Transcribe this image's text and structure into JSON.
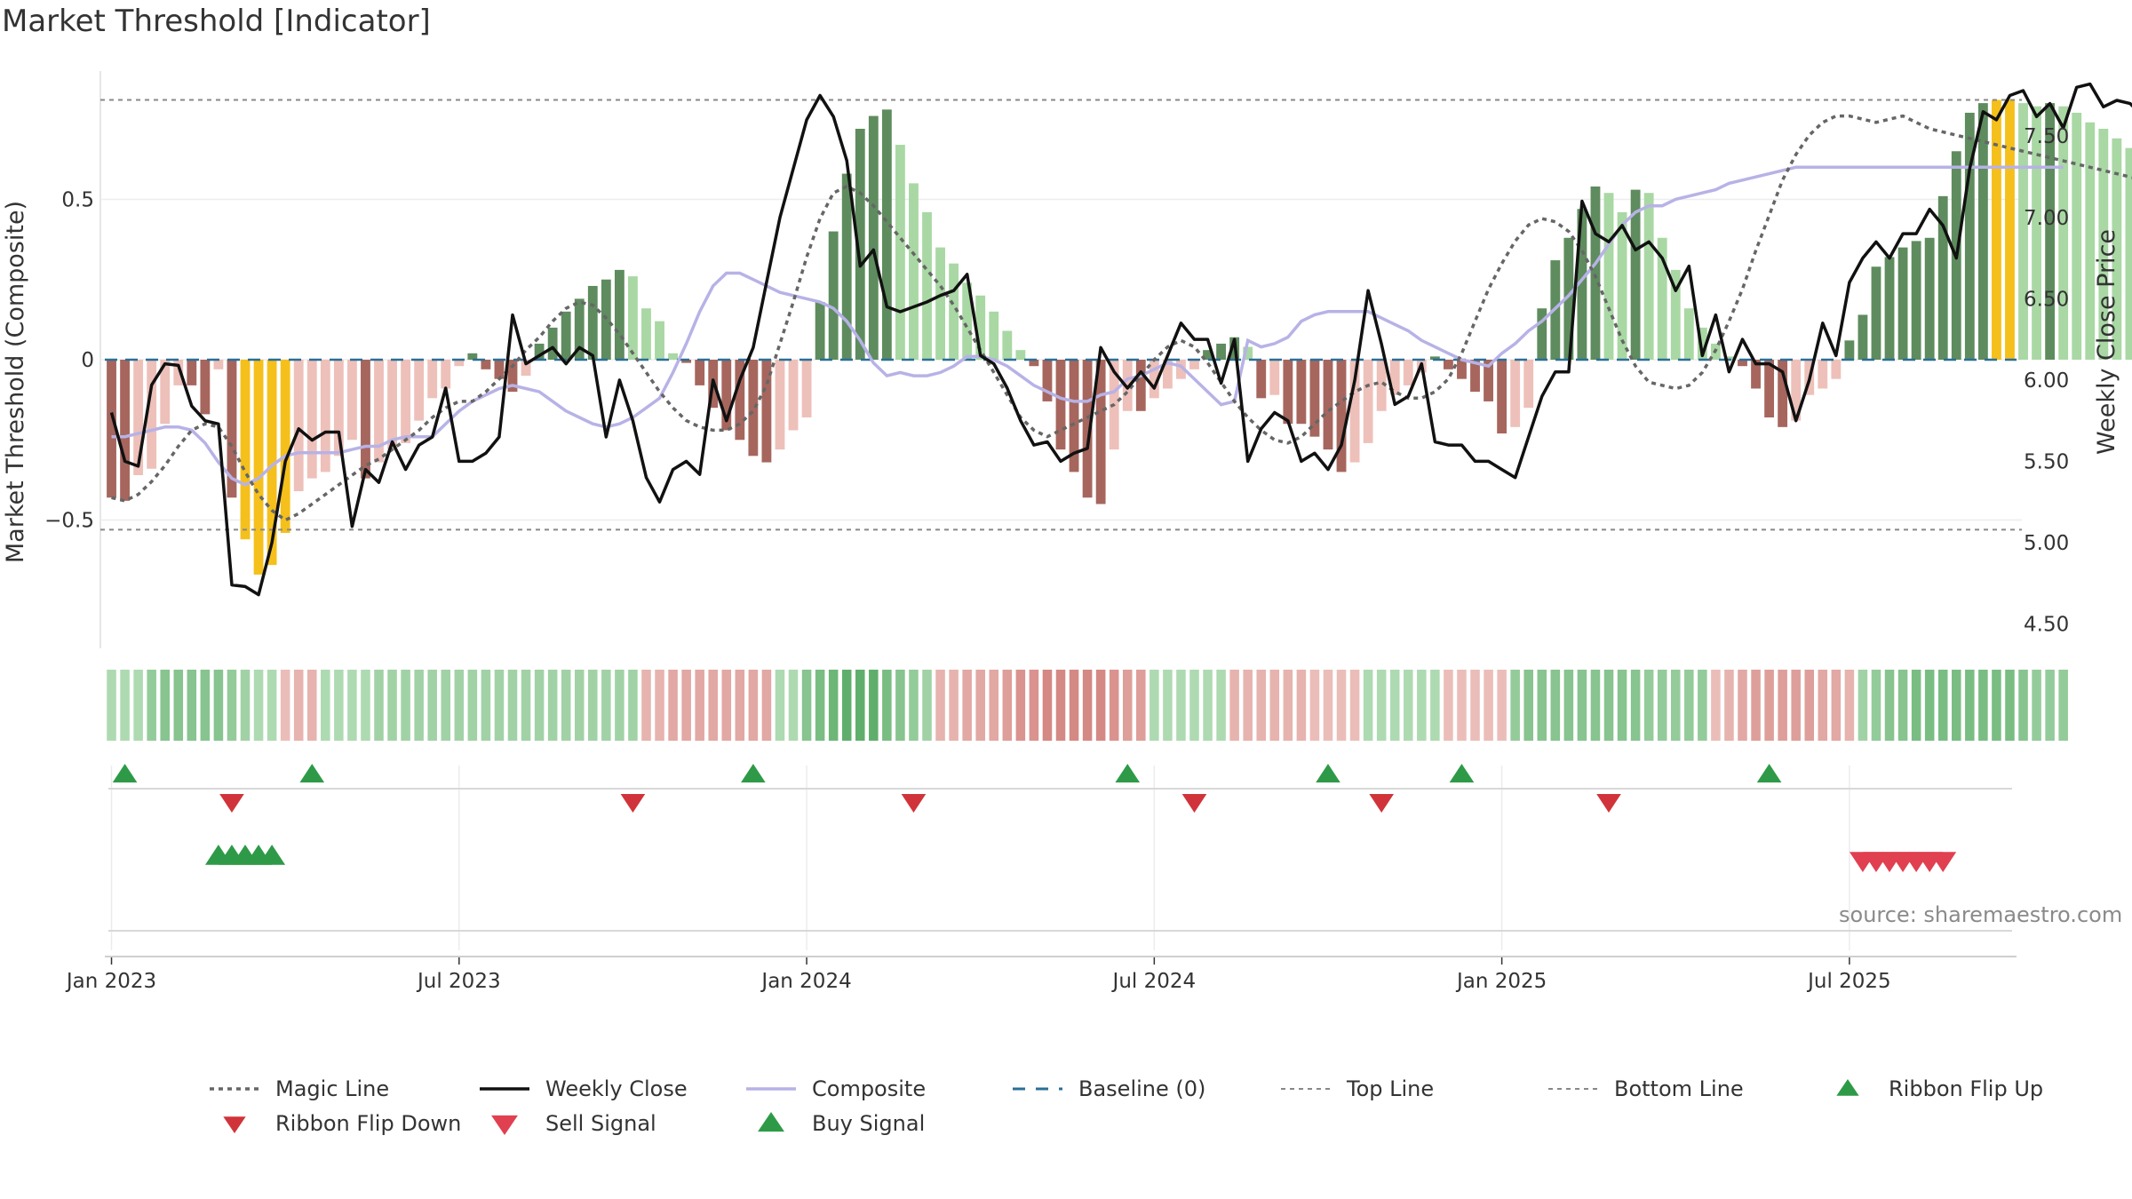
{
  "chart_data": {
    "type": "bar",
    "title": "Market Threshold [Indicator]",
    "source_note": "source: sharemaestro.com",
    "ylabel_left": "Market Threshold (Composite)",
    "ylabel_right": "Weekly Close Price",
    "left_ticks": [
      {
        "v": 0.5,
        "label": "0.5"
      },
      {
        "v": 0,
        "label": "0"
      },
      {
        "v": -0.5,
        "label": "−0.5"
      }
    ],
    "right_ticks": [
      {
        "v": 7.5,
        "label": "7.50"
      },
      {
        "v": 7.0,
        "label": "7.00"
      },
      {
        "v": 6.5,
        "label": "6.50"
      },
      {
        "v": 6.0,
        "label": "6.00"
      },
      {
        "v": 5.5,
        "label": "5.50"
      },
      {
        "v": 5.0,
        "label": "5.00"
      },
      {
        "v": 4.5,
        "label": "4.50"
      }
    ],
    "left_ylim": [
      -0.9,
      0.9
    ],
    "right_ylim": [
      4.35,
      7.9
    ],
    "x_ticks": [
      {
        "week": 1,
        "label": "Jan 2023"
      },
      {
        "week": 27,
        "label": "Jul 2023"
      },
      {
        "week": 53,
        "label": "Jan 2024"
      },
      {
        "week": 79,
        "label": "Jul 2024"
      },
      {
        "week": 105,
        "label": "Jan 2025"
      },
      {
        "week": 131,
        "label": "Jul 2025"
      }
    ],
    "weeks": 143,
    "top_line": 0.81,
    "bottom_line": -0.53,
    "baseline": 0,
    "composite_bars": [
      -0.43,
      -0.44,
      -0.36,
      -0.34,
      -0.2,
      -0.08,
      -0.08,
      -0.17,
      -0.03,
      -0.43,
      -0.56,
      -0.67,
      -0.64,
      -0.54,
      -0.41,
      -0.37,
      -0.35,
      -0.3,
      -0.25,
      -0.37,
      -0.32,
      -0.28,
      -0.26,
      -0.19,
      -0.12,
      -0.09,
      -0.02,
      0.02,
      -0.03,
      -0.06,
      -0.1,
      -0.05,
      0.05,
      0.1,
      0.15,
      0.19,
      0.23,
      0.25,
      0.28,
      0.26,
      0.16,
      0.12,
      0.02,
      -0.01,
      -0.08,
      -0.15,
      -0.22,
      -0.25,
      -0.3,
      -0.32,
      -0.28,
      -0.22,
      -0.18,
      0.18,
      0.4,
      0.58,
      0.72,
      0.76,
      0.78,
      0.67,
      0.55,
      0.46,
      0.35,
      0.3,
      0.24,
      0.2,
      0.15,
      0.09,
      0.03,
      -0.02,
      -0.13,
      -0.28,
      -0.35,
      -0.43,
      -0.45,
      -0.28,
      -0.16,
      -0.16,
      -0.12,
      -0.09,
      -0.06,
      -0.03,
      0.03,
      0.05,
      0.07,
      0.04,
      -0.12,
      -0.11,
      -0.2,
      -0.2,
      -0.24,
      -0.28,
      -0.35,
      -0.32,
      -0.26,
      -0.16,
      -0.11,
      -0.08,
      -0.04,
      0.01,
      -0.03,
      -0.06,
      -0.1,
      -0.13,
      -0.23,
      -0.21,
      -0.15,
      0.16,
      0.31,
      0.38,
      0.47,
      0.54,
      0.52,
      0.46,
      0.53,
      0.52,
      0.38,
      0.28,
      0.16,
      0.1,
      0.05,
      0.01,
      -0.02,
      -0.09,
      -0.18,
      -0.21,
      -0.19,
      -0.11,
      -0.09,
      -0.06,
      0.06,
      0.14,
      0.29,
      0.32,
      0.35,
      0.37,
      0.38,
      0.51,
      0.65,
      0.77,
      0.8,
      0.81,
      0.81,
      0.8,
      0.79,
      0.8,
      0.79,
      0.77,
      0.74,
      0.72,
      0.69,
      0.66
    ],
    "weekly_close": [
      5.8,
      5.5,
      5.47,
      5.97,
      6.1,
      6.09,
      5.84,
      5.75,
      5.73,
      4.74,
      4.73,
      4.68,
      5.0,
      5.5,
      5.7,
      5.63,
      5.68,
      5.68,
      5.1,
      5.45,
      5.37,
      5.62,
      5.45,
      5.6,
      5.65,
      5.95,
      5.5,
      5.5,
      5.55,
      5.65,
      6.4,
      6.1,
      6.15,
      6.2,
      6.1,
      6.2,
      6.15,
      5.65,
      6.0,
      5.75,
      5.4,
      5.25,
      5.45,
      5.5,
      5.42,
      6.0,
      5.75,
      6.0,
      6.2,
      6.6,
      7.0,
      7.3,
      7.6,
      7.75,
      7.62,
      7.35,
      6.7,
      6.8,
      6.45,
      6.42,
      6.45,
      6.48,
      6.52,
      6.55,
      6.65,
      6.15,
      6.1,
      5.95,
      5.75,
      5.6,
      5.62,
      5.5,
      5.55,
      5.58,
      6.2,
      6.05,
      5.95,
      6.05,
      5.95,
      6.15,
      6.35,
      6.25,
      6.25,
      5.98,
      6.25,
      5.5,
      5.7,
      5.8,
      5.75,
      5.5,
      5.55,
      5.45,
      5.6,
      6.0,
      6.55,
      6.22,
      5.85,
      5.9,
      6.1,
      5.62,
      5.6,
      5.6,
      5.5,
      5.5,
      5.45,
      5.4,
      5.65,
      5.9,
      6.05,
      6.05,
      7.1,
      6.9,
      6.85,
      6.95,
      6.8,
      6.85,
      6.75,
      6.55,
      6.7,
      6.15,
      6.4,
      6.05,
      6.25,
      6.1,
      6.1,
      6.05,
      5.75,
      6.0,
      6.35,
      6.15,
      6.6,
      6.75,
      6.85,
      6.75,
      6.9,
      6.9,
      7.05,
      6.95,
      6.75,
      7.3,
      7.65,
      7.6,
      7.75,
      7.78,
      7.62,
      7.7,
      7.55,
      7.8,
      7.82,
      7.68,
      7.72,
      7.7,
      7.62
    ],
    "magic_line": [
      -0.43,
      -0.44,
      -0.42,
      -0.38,
      -0.33,
      -0.27,
      -0.22,
      -0.2,
      -0.21,
      -0.27,
      -0.35,
      -0.42,
      -0.47,
      -0.5,
      -0.48,
      -0.45,
      -0.42,
      -0.39,
      -0.36,
      -0.33,
      -0.31,
      -0.28,
      -0.25,
      -0.22,
      -0.18,
      -0.15,
      -0.13,
      -0.13,
      -0.1,
      -0.06,
      -0.02,
      0.03,
      0.07,
      0.12,
      0.16,
      0.18,
      0.17,
      0.13,
      0.08,
      0.02,
      -0.04,
      -0.1,
      -0.15,
      -0.19,
      -0.21,
      -0.22,
      -0.22,
      -0.2,
      -0.16,
      -0.08,
      0.05,
      0.18,
      0.32,
      0.44,
      0.52,
      0.54,
      0.52,
      0.48,
      0.43,
      0.38,
      0.33,
      0.28,
      0.23,
      0.17,
      0.1,
      0.03,
      -0.04,
      -0.11,
      -0.18,
      -0.22,
      -0.24,
      -0.22,
      -0.2,
      -0.18,
      -0.16,
      -0.14,
      -0.1,
      -0.05,
      0.0,
      0.04,
      0.06,
      0.04,
      -0.01,
      -0.07,
      -0.13,
      -0.18,
      -0.22,
      -0.25,
      -0.26,
      -0.24,
      -0.2,
      -0.16,
      -0.13,
      -0.1,
      -0.08,
      -0.07,
      -0.1,
      -0.12,
      -0.12,
      -0.1,
      -0.06,
      0.02,
      0.12,
      0.22,
      0.3,
      0.37,
      0.42,
      0.44,
      0.43,
      0.4,
      0.34,
      0.26,
      0.16,
      0.06,
      -0.02,
      -0.07,
      -0.08,
      -0.09,
      -0.08,
      -0.04,
      0.03,
      0.12,
      0.22,
      0.34,
      0.45,
      0.56,
      0.64,
      0.7,
      0.74,
      0.76,
      0.76,
      0.75,
      0.74,
      0.75,
      0.76,
      0.74,
      0.72,
      0.71,
      0.7,
      0.69,
      0.68,
      0.67,
      0.66,
      0.65,
      0.64,
      0.63,
      0.62,
      0.61,
      0.6,
      0.59,
      0.58,
      0.57,
      0.56,
      0.55,
      0.54,
      0.53,
      0.52
    ],
    "composite_line": [
      -0.24,
      -0.24,
      -0.23,
      -0.22,
      -0.21,
      -0.21,
      -0.22,
      -0.26,
      -0.32,
      -0.37,
      -0.39,
      -0.37,
      -0.33,
      -0.3,
      -0.29,
      -0.29,
      -0.29,
      -0.29,
      -0.28,
      -0.27,
      -0.27,
      -0.25,
      -0.24,
      -0.24,
      -0.24,
      -0.2,
      -0.16,
      -0.13,
      -0.11,
      -0.09,
      -0.08,
      -0.09,
      -0.1,
      -0.13,
      -0.16,
      -0.18,
      -0.2,
      -0.21,
      -0.2,
      -0.18,
      -0.15,
      -0.12,
      -0.04,
      0.05,
      0.15,
      0.23,
      0.27,
      0.27,
      0.25,
      0.23,
      0.21,
      0.2,
      0.19,
      0.18,
      0.16,
      0.12,
      0.06,
      -0.01,
      -0.05,
      -0.04,
      -0.05,
      -0.05,
      -0.04,
      -0.02,
      0.01,
      0.01,
      0.0,
      -0.02,
      -0.05,
      -0.08,
      -0.1,
      -0.12,
      -0.13,
      -0.13,
      -0.11,
      -0.1,
      -0.06,
      -0.05,
      -0.03,
      -0.01,
      -0.02,
      -0.06,
      -0.1,
      -0.14,
      -0.13,
      0.06,
      0.04,
      0.05,
      0.07,
      0.12,
      0.14,
      0.15,
      0.15,
      0.15,
      0.15,
      0.13,
      0.11,
      0.09,
      0.06,
      0.04,
      0.02,
      0.0,
      -0.01,
      -0.02,
      0.02,
      0.05,
      0.09,
      0.12,
      0.16,
      0.2,
      0.25,
      0.3,
      0.36,
      0.42,
      0.46,
      0.48,
      0.48,
      0.5,
      0.51,
      0.52,
      0.53,
      0.55,
      0.56,
      0.57,
      0.58,
      0.59,
      0.6,
      0.6,
      0.6,
      0.6,
      0.6,
      0.6,
      0.6,
      0.6,
      0.6,
      0.6,
      0.6,
      0.6,
      0.6,
      0.6,
      0.6,
      0.6,
      0.6,
      0.6,
      0.6,
      0.6,
      0.6
    ],
    "ribbon_flip_up_weeks": [
      2,
      16,
      49,
      77,
      92,
      102,
      125
    ],
    "ribbon_flip_down_weeks": [
      10,
      40,
      61,
      82,
      96,
      113
    ],
    "buy_signal_weeks": [
      9,
      10,
      11,
      12,
      13
    ],
    "sell_signal_weeks": [
      132,
      133,
      134,
      135,
      136,
      137,
      138
    ],
    "ribbon_values": [
      0.2,
      0.2,
      0.2,
      0.4,
      0.5,
      0.5,
      0.5,
      0.5,
      0.5,
      0.4,
      0.3,
      0.2,
      0.2,
      -0.2,
      -0.3,
      -0.3,
      0.2,
      0.2,
      0.2,
      0.2,
      0.3,
      0.3,
      0.3,
      0.3,
      0.3,
      0.3,
      0.3,
      0.3,
      0.3,
      0.3,
      0.3,
      0.3,
      0.3,
      0.3,
      0.3,
      0.3,
      0.3,
      0.3,
      0.3,
      0.3,
      -0.3,
      -0.3,
      -0.4,
      -0.4,
      -0.4,
      -0.4,
      -0.4,
      -0.4,
      -0.4,
      -0.4,
      0.2,
      0.2,
      0.5,
      0.6,
      0.7,
      0.8,
      0.8,
      0.8,
      0.6,
      0.5,
      0.4,
      0.3,
      -0.3,
      -0.3,
      -0.4,
      -0.4,
      -0.4,
      -0.5,
      -0.6,
      -0.6,
      -0.7,
      -0.7,
      -0.7,
      -0.7,
      -0.7,
      -0.6,
      -0.5,
      -0.5,
      0.2,
      0.2,
      0.2,
      0.2,
      0.2,
      0.2,
      -0.3,
      -0.3,
      -0.3,
      -0.3,
      -0.3,
      -0.3,
      -0.2,
      -0.2,
      -0.2,
      -0.2,
      0.2,
      0.2,
      0.2,
      0.2,
      0.2,
      0.2,
      -0.2,
      -0.2,
      -0.2,
      -0.2,
      -0.2,
      0.4,
      0.5,
      0.5,
      0.5,
      0.5,
      0.5,
      0.5,
      0.5,
      0.5,
      0.5,
      0.4,
      0.4,
      0.4,
      0.4,
      0.4,
      -0.2,
      -0.3,
      -0.4,
      -0.5,
      -0.5,
      -0.5,
      -0.5,
      -0.5,
      -0.4,
      -0.4,
      -0.3,
      0.3,
      0.4,
      0.5,
      0.5,
      0.6,
      0.6,
      0.6,
      0.6,
      0.6,
      0.6,
      0.6,
      0.6,
      0.5,
      0.4,
      0.4,
      0.4
    ],
    "legend": [
      {
        "key": "magic",
        "label": "Magic Line"
      },
      {
        "key": "close",
        "label": "Weekly Close"
      },
      {
        "key": "composite",
        "label": "Composite"
      },
      {
        "key": "baseline",
        "label": "Baseline (0)"
      },
      {
        "key": "top",
        "label": "Top Line"
      },
      {
        "key": "bottom",
        "label": "Bottom Line"
      },
      {
        "key": "flipup",
        "label": "Ribbon Flip Up"
      },
      {
        "key": "flipdown",
        "label": "Ribbon Flip Down"
      },
      {
        "key": "sell",
        "label": "Sell Signal"
      },
      {
        "key": "buy",
        "label": "Buy Signal"
      }
    ],
    "colors": {
      "dark_green": "#5e8c5e",
      "light_green": "#a9d8a4",
      "dark_red": "#a6665e",
      "light_red": "#eec0ba",
      "extreme": "#f5c01b",
      "close_line": "#111111",
      "magic_line": "#666666",
      "composite_line": "#b7b2e6",
      "baseline": "#2a6f97",
      "threshold_line": "#888888",
      "flip_up": "#2e9a48",
      "flip_down": "#d0343a",
      "sell": "#e04050",
      "buy": "#2e9a48"
    }
  }
}
